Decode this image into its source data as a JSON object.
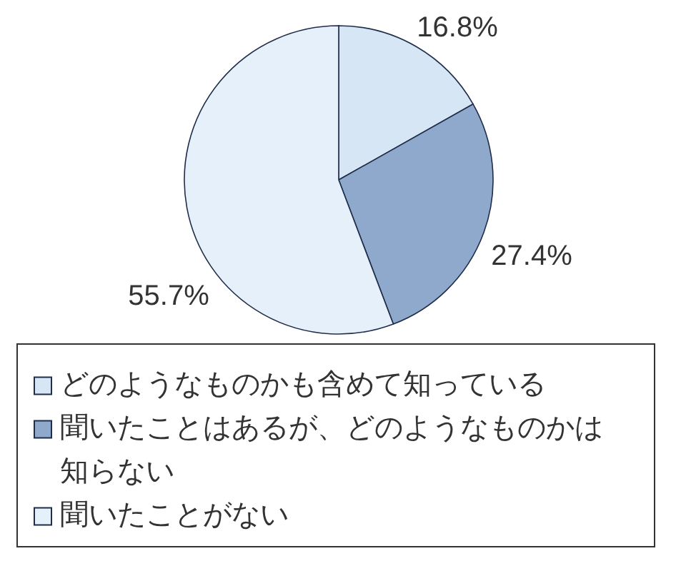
{
  "chart_data": {
    "type": "pie",
    "categories": [
      "どのようなものかも含めて知っている",
      "聞いたことはあるが、どのようなものかは知らない",
      "聞いたことがない"
    ],
    "values": [
      16.8,
      27.4,
      55.7
    ],
    "colors": [
      "#d6e6f5",
      "#8ea9cc",
      "#e6f0fa"
    ],
    "value_labels": [
      "16.8%",
      "27.4%",
      "55.7%"
    ],
    "legend": "bottom"
  }
}
